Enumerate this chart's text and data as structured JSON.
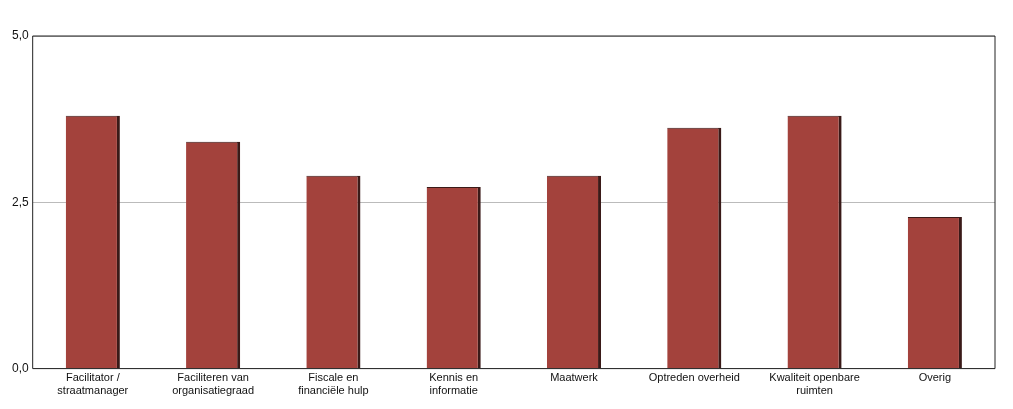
{
  "chart_data": {
    "type": "bar",
    "categories": [
      "Facilitator / straatmanager",
      "Faciliteren van organisatiegraad",
      "Fiscale en financiële hulp",
      "Kennis en informatie",
      "Maatwerk",
      "Optreden overheid",
      "Kwaliteit openbare ruimten",
      "Overig"
    ],
    "values": [
      3.8,
      3.41,
      2.9,
      2.73,
      2.9,
      3.62,
      3.8,
      2.28
    ],
    "color": "#a3423c",
    "ylim": [
      0,
      5
    ],
    "yticks": [
      {
        "value": 0,
        "label": "0,0"
      },
      {
        "value": 2.5,
        "label": "2,5"
      },
      {
        "value": 5,
        "label": "5,0"
      }
    ],
    "grid": "y",
    "legend": false
  }
}
